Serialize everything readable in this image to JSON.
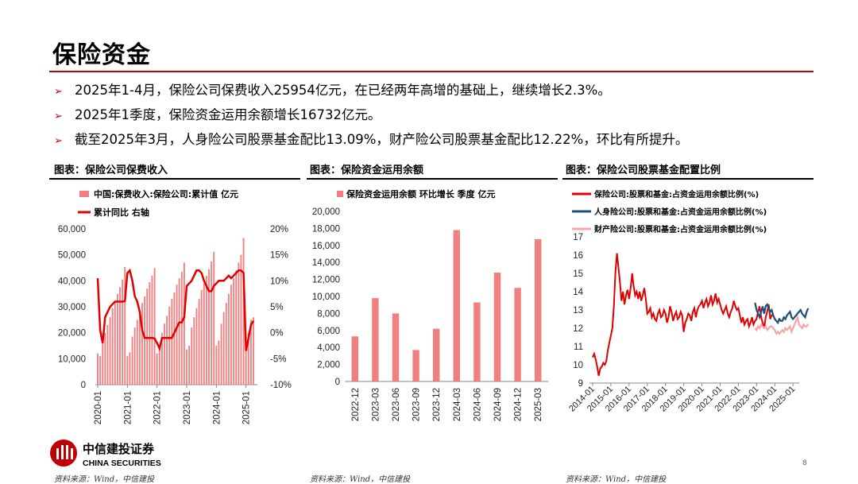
{
  "title": "保险资金",
  "bullets": [
    "2025年1-4月，保险公司保费收入25954亿元，在已经两年高增的基础上，继续增长2.3%。",
    "2025年1季度，保险资金运用余额增长16732亿元。",
    "截至2025年3月，人身险公司股票基金配比13.09%，财产险公司股票基金配比12.22%，环比有所提升。"
  ],
  "bullet_marker": "➢",
  "chart_titles": [
    "图表：保险公司保费收入",
    "图表：保险资金运用余额",
    "图表：保险公司股票基金配置比例"
  ],
  "sources": [
    "资料来源：Wind，中信建投",
    "资料来源：Wind，中信建投",
    "资料来源：Wind，中信建投"
  ],
  "logo": {
    "cn": "中信建投证券",
    "en": "CHINA SECURITIES"
  },
  "page_number": "8",
  "colors": {
    "accent": "#c00000",
    "bar": "#f08080",
    "red_line": "#e00000",
    "navy_line": "#1f4e79",
    "pink_line": "#f4a6a6"
  },
  "chart_data": [
    {
      "type": "bar",
      "legend": [
        "中国:保费收入:保险公司:累计值 亿元",
        "累计同比 右轴"
      ],
      "x_ticks": [
        "2020-01",
        "2021-01",
        "2022-01",
        "2023-01",
        "2024-01",
        "2025-01"
      ],
      "y_ticks": [
        "60,000",
        "50,000",
        "40,000",
        "30,000",
        "20,000",
        "10,000",
        "0"
      ],
      "y2_ticks": [
        "20%",
        "15%",
        "10%",
        "5%",
        "0%",
        "-5%",
        "-10%"
      ],
      "ylim": [
        0,
        60000
      ],
      "y2lim": [
        -10,
        20
      ],
      "series": [
        {
          "name": "中国:保费收入:保险公司:累计值 亿元",
          "axis": "left",
          "kind": "bar",
          "start": "2020-01",
          "values": [
            12000,
            11000,
            17000,
            20000,
            23000,
            26000,
            29500,
            32000,
            35000,
            37500,
            40500,
            45300,
            11000,
            12500,
            18500,
            22000,
            25000,
            28000,
            31500,
            34000,
            37000,
            39500,
            42000,
            44900,
            12000,
            13500,
            20000,
            23500,
            26500,
            30000,
            33000,
            35500,
            38500,
            41000,
            43500,
            47000,
            13500,
            15000,
            22000,
            26000,
            29500,
            33000,
            36500,
            39000,
            42000,
            44500,
            47500,
            51200,
            15000,
            17000,
            23500,
            28000,
            31500,
            35000,
            38500,
            41000,
            44000,
            47000,
            50000,
            56500,
            19000,
            20000,
            25000,
            25954
          ]
        },
        {
          "name": "累计同比 右轴",
          "axis": "right",
          "kind": "line",
          "start": "2020-01",
          "values": [
            10.5,
            0.5,
            -2,
            3,
            4,
            5,
            5.5,
            6,
            6,
            6,
            6,
            6.1,
            11.5,
            12,
            10,
            7,
            6,
            4,
            0.5,
            -1,
            -1,
            -1,
            -1,
            -1.1,
            -2,
            -3,
            -1,
            -1,
            -1,
            -1,
            -1,
            0,
            1,
            2,
            2,
            3,
            9,
            9.5,
            10,
            11,
            12,
            12,
            11.5,
            10,
            9,
            8,
            8,
            9,
            9.5,
            10,
            10,
            10,
            10.5,
            11,
            10.5,
            11,
            11.5,
            12,
            12,
            11.5,
            -3.5,
            -1,
            1.5,
            2.3
          ]
        }
      ]
    },
    {
      "type": "bar",
      "legend": [
        "保险资金运用余额 环比增长 季度 亿元"
      ],
      "categories": [
        "2022-12",
        "2023-03",
        "2023-06",
        "2023-09",
        "2023-12",
        "2024-03",
        "2024-06",
        "2024-09",
        "2024-12",
        "2025-03"
      ],
      "values": [
        5300,
        9800,
        8000,
        3700,
        6200,
        17800,
        9300,
        12800,
        11000,
        16732
      ],
      "y_ticks": [
        "20,000",
        "18,000",
        "16,000",
        "14,000",
        "12,000",
        "10,000",
        "8,000",
        "6,000",
        "4,000",
        "2,000",
        "0"
      ],
      "ylim": [
        0,
        20000
      ]
    },
    {
      "type": "line",
      "legend": [
        "保险公司:股票和基金:占资金运用余额比例(%)",
        "人身险公司:股票和基金:占资金运用余额比例(%)",
        "财产险公司:股票和基金:占资金运用余额比例(%)"
      ],
      "x_ticks": [
        "2014-01",
        "2015-01",
        "2016-01",
        "2017-01",
        "2018-01",
        "2019-01",
        "2020-01",
        "2021-01",
        "2022-01",
        "2023-01",
        "2024-01",
        "2025-01"
      ],
      "y_ticks": [
        "17",
        "16",
        "15",
        "14",
        "13",
        "12",
        "11",
        "10",
        "9"
      ],
      "ylim": [
        9,
        17
      ],
      "series": [
        {
          "name": "保险公司:股票和基金:占资金运用余额比例(%)",
          "start": "2014-01",
          "values": [
            10.4,
            10.6,
            10.3,
            9.9,
            9.4,
            9.8,
            9.9,
            10.1,
            10.0,
            10.2,
            10.8,
            11.2,
            11.6,
            12.0,
            13.2,
            15.1,
            16.1,
            15.3,
            14.5,
            13.5,
            14.0,
            13.3,
            13.8,
            14.1,
            13.6,
            14.2,
            15.0,
            14.3,
            13.8,
            14.0,
            13.6,
            14.0,
            13.5,
            13.8,
            14.2,
            13.6,
            12.8,
            12.9,
            13.1,
            12.6,
            12.8,
            12.5,
            12.4,
            12.8,
            13.0,
            12.6,
            12.7,
            13.0,
            12.8,
            12.3,
            12.6,
            13.2,
            12.9,
            12.4,
            12.7,
            12.9,
            12.5,
            12.6,
            12.9,
            12.7,
            11.8,
            12.3,
            12.5,
            12.8,
            12.7,
            12.4,
            12.9,
            13.1,
            12.6,
            13.0,
            13.2,
            13.3,
            13.5,
            13.1,
            13.4,
            13.6,
            13.2,
            13.4,
            13.8,
            13.3,
            13.5,
            13.9,
            13.4,
            13.6,
            13.3,
            13.0,
            12.8,
            13.0,
            13.2,
            12.8,
            12.6,
            12.9,
            13.1,
            13.5,
            13.2,
            13.0,
            13.1,
            12.7,
            12.3,
            12.6,
            12.2,
            12.4,
            12.5,
            12.1,
            12.3,
            12.6,
            12.2,
            12.4,
            12.5,
            12.9,
            13.2,
            12.6,
            12.3,
            12.0,
            12.6,
            12.9,
            13.3,
            12.5,
            12.7,
            12.8
          ]
        },
        {
          "name": "人身险公司:股票和基金:占资金运用余额比例(%)",
          "start": "2022-12",
          "values": [
            13.4,
            13.0,
            12.8,
            12.6,
            12.9,
            13.2,
            12.8,
            13.2,
            13.3,
            13.1,
            12.9,
            13.0,
            12.7,
            12.5,
            12.4,
            12.3,
            12.5,
            12.4,
            12.4,
            12.6,
            12.5,
            12.7,
            12.8,
            12.9,
            12.6,
            12.5,
            12.6,
            12.7,
            12.8,
            12.9,
            13.0,
            12.8,
            12.7,
            12.6,
            12.9,
            13.09
          ]
        },
        {
          "name": "财产险公司:股票和基金:占资金运用余额比例(%)",
          "start": "2022-12",
          "values": [
            12.0,
            11.9,
            12.1,
            12.0,
            12.2,
            12.1,
            12.0,
            12.1,
            11.9,
            12.0,
            12.1,
            12.1,
            12.0,
            11.9,
            11.7,
            11.8,
            11.7,
            11.8,
            11.9,
            11.8,
            12.0,
            11.9,
            12.0,
            12.1,
            11.8,
            12.0,
            12.2,
            12.4,
            12.6,
            12.2,
            12.1,
            12.0,
            12.2,
            12.1,
            12.1,
            12.22
          ]
        }
      ]
    }
  ]
}
